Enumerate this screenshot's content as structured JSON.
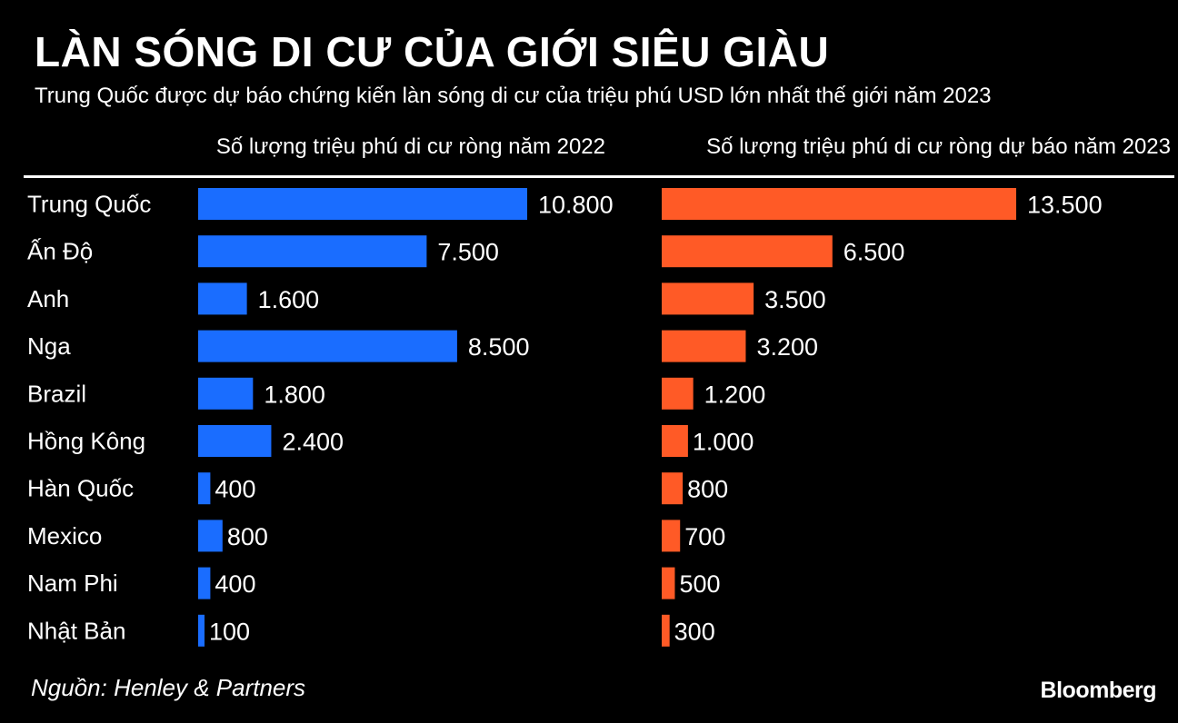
{
  "chart_data": {
    "type": "bar",
    "orientation": "horizontal",
    "title": "LÀN SÓNG DI CƯ CỦA GIỚI SIÊU GIÀU",
    "subtitle": "Trung Quốc được dự báo chứng kiến làn sóng di cư của triệu phú USD lớn nhất thế giới năm 2023",
    "categories": [
      "Trung Quốc",
      "Ấn Độ",
      "Anh",
      "Nga",
      "Brazil",
      "Hồng Kông",
      "Hàn Quốc",
      "Mexico",
      "Nam Phi",
      "Nhật Bản"
    ],
    "series": [
      {
        "name": "Số lượng triệu phú di cư ròng năm 2022",
        "color": "#1a6dff",
        "values": [
          10800,
          7500,
          1600,
          8500,
          1800,
          2400,
          400,
          800,
          400,
          100
        ],
        "labels": [
          "10.800",
          "7.500",
          "1.600",
          "8.500",
          "1.800",
          "2.400",
          "400",
          "800",
          "400",
          "100"
        ]
      },
      {
        "name": "Số lượng triệu phú di cư ròng dự báo năm 2023",
        "color": "#ff5a26",
        "values": [
          13500,
          6500,
          3500,
          3200,
          1200,
          1000,
          800,
          700,
          500,
          300
        ],
        "labels": [
          "13.500",
          "6.500",
          "3.500",
          "3.200",
          "1.200",
          "1.000",
          "800",
          "700",
          "500",
          "300"
        ]
      }
    ],
    "source": "Nguồn: Henley & Partners",
    "brand": "Bloomberg"
  }
}
